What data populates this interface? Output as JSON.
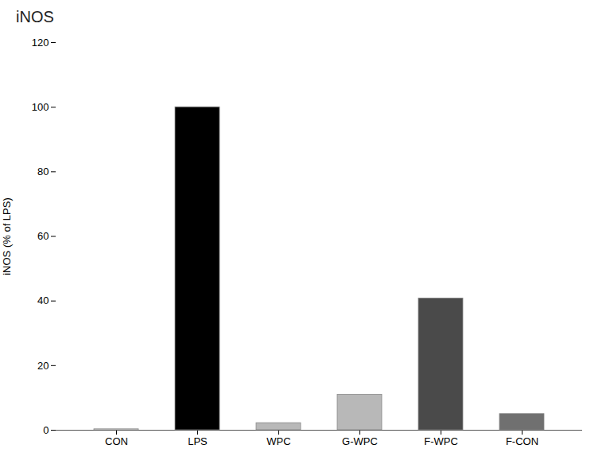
{
  "chart_data": {
    "type": "bar",
    "title": "iNOS",
    "categories": [
      "CON",
      "LPS",
      "WPC",
      "G-WPC",
      "F-WPC",
      "F-CON"
    ],
    "values": [
      0.3,
      100,
      2.2,
      11.0,
      40.8,
      5.0
    ],
    "colors": [
      "#f0f0f0",
      "#000000",
      "#b8b8b8",
      "#b8b8b8",
      "#4a4a4a",
      "#707070"
    ],
    "ylabel": "iNOS (% of LPS)",
    "ylim": [
      0,
      120
    ],
    "yticks": [
      0,
      20,
      40,
      60,
      80,
      100,
      120
    ],
    "grid": false
  }
}
